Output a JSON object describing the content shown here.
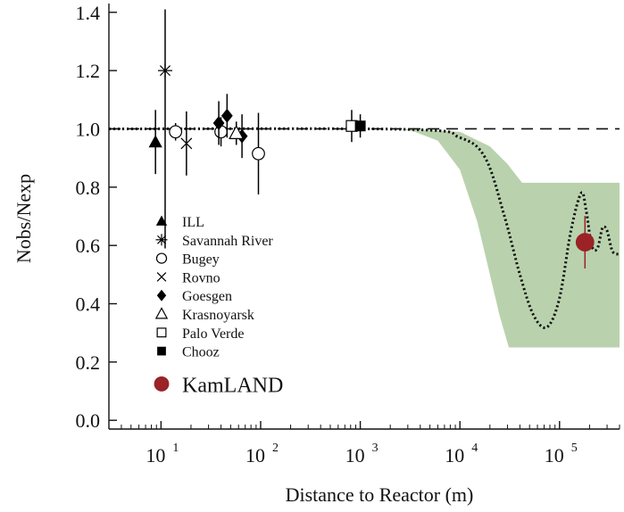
{
  "chart_data": {
    "type": "scatter",
    "xlabel": "Distance to Reactor (m)",
    "ylabel": "Nobs/Nexp",
    "xscale": "log",
    "xlim": [
      3,
      400000
    ],
    "ylim": [
      -0.03,
      1.43
    ],
    "x_ticks": [
      10,
      100,
      1000,
      10000,
      100000
    ],
    "x_tick_labels": [
      {
        "base": "10",
        "exp": "1"
      },
      {
        "base": "10",
        "exp": "2"
      },
      {
        "base": "10",
        "exp": "3"
      },
      {
        "base": "10",
        "exp": "4"
      },
      {
        "base": "10",
        "exp": "5"
      }
    ],
    "y_ticks": [
      0.0,
      0.2,
      0.4,
      0.6,
      0.8,
      1.0,
      1.2,
      1.4
    ],
    "y_tick_labels": [
      "0.0",
      "0.2",
      "0.4",
      "0.6",
      "0.8",
      "1.0",
      "1.2",
      "1.4"
    ],
    "legend_position": "left-center",
    "series": [
      {
        "name": "ILL",
        "marker": "filled-triangle",
        "points": [
          {
            "x": 8.8,
            "y": 0.955,
            "err": 0.11
          }
        ]
      },
      {
        "name": "Savannah River",
        "marker": "asterisk",
        "points": [
          {
            "x": 11,
            "y": 1.2,
            "err": 0.0
          },
          {
            "x": 11,
            "y": 1.0,
            "err": 0.41
          }
        ]
      },
      {
        "name": "Bugey",
        "marker": "open-circle",
        "points": [
          {
            "x": 14,
            "y": 0.99,
            "err": 0.03
          },
          {
            "x": 40,
            "y": 0.99,
            "err": 0.05
          },
          {
            "x": 95,
            "y": 0.915,
            "err": 0.14
          }
        ]
      },
      {
        "name": "Rovno",
        "marker": "cross",
        "points": [
          {
            "x": 18,
            "y": 0.95,
            "err": 0.11
          }
        ]
      },
      {
        "name": "Goesgen",
        "marker": "filled-diamond",
        "points": [
          {
            "x": 38,
            "y": 1.02,
            "err": 0.075
          },
          {
            "x": 46,
            "y": 1.045,
            "err": 0.075
          },
          {
            "x": 65,
            "y": 0.975,
            "err": 0.075
          }
        ]
      },
      {
        "name": "Krasnoyarsk",
        "marker": "open-triangle",
        "points": [
          {
            "x": 57,
            "y": 0.985,
            "err": 0.04
          }
        ]
      },
      {
        "name": "Palo Verde",
        "marker": "open-square",
        "points": [
          {
            "x": 820,
            "y": 1.01,
            "err": 0.055
          }
        ]
      },
      {
        "name": "Chooz",
        "marker": "filled-square",
        "points": [
          {
            "x": 1000,
            "y": 1.01,
            "err": 0.04
          }
        ]
      },
      {
        "name": "KamLAND",
        "marker": "large-filled-circle",
        "color": "#9b2226",
        "points": [
          {
            "x": 180000,
            "y": 0.611,
            "err": 0.09
          }
        ]
      }
    ],
    "reference_line": {
      "y": 1.0,
      "style": "dashed"
    },
    "oscillation_curve": {
      "style": "dotted",
      "description_points": [
        [
          3,
          1.0
        ],
        [
          3000,
          0.998
        ],
        [
          10000,
          0.97
        ],
        [
          18000,
          0.9
        ],
        [
          28000,
          0.7
        ],
        [
          40000,
          0.5
        ],
        [
          55000,
          0.36
        ],
        [
          75000,
          0.32
        ],
        [
          100000,
          0.42
        ],
        [
          130000,
          0.65
        ],
        [
          165000,
          0.78
        ],
        [
          185000,
          0.72
        ],
        [
          210000,
          0.6
        ],
        [
          240000,
          0.59
        ],
        [
          270000,
          0.66
        ],
        [
          300000,
          0.65
        ],
        [
          340000,
          0.58
        ],
        [
          400000,
          0.57
        ]
      ]
    },
    "band": {
      "color": "#b9d2ad",
      "upper": [
        [
          2500,
          1.0
        ],
        [
          10000,
          0.99
        ],
        [
          20000,
          0.94
        ],
        [
          30000,
          0.88
        ],
        [
          42000,
          0.815
        ],
        [
          400000,
          0.815
        ]
      ],
      "lower": [
        [
          2500,
          1.0
        ],
        [
          3500,
          0.99
        ],
        [
          6000,
          0.96
        ],
        [
          10000,
          0.86
        ],
        [
          15000,
          0.68
        ],
        [
          20000,
          0.5
        ],
        [
          25000,
          0.36
        ],
        [
          31000,
          0.25
        ],
        [
          400000,
          0.25
        ]
      ]
    }
  }
}
